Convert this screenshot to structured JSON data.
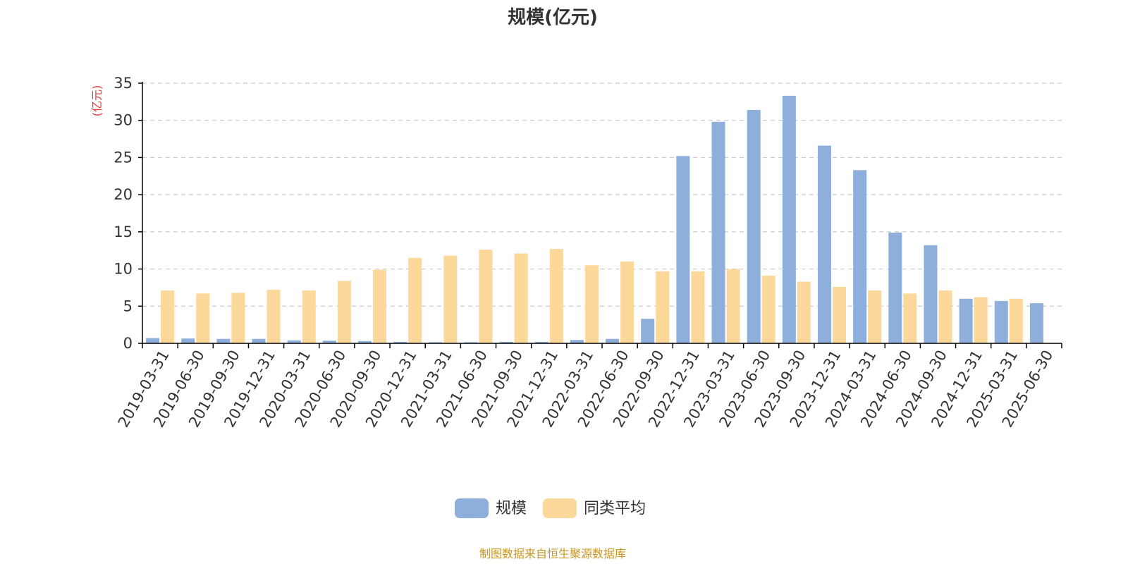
{
  "chart_data": {
    "type": "bar",
    "title": "规模(亿元)",
    "ylabel": "(亿元)",
    "ylim": [
      0,
      35
    ],
    "yticks": [
      0,
      5,
      10,
      15,
      20,
      25,
      30,
      35
    ],
    "grid": true,
    "legend_position": "bottom-center",
    "categories": [
      "2019-03-31",
      "2019-06-30",
      "2019-09-30",
      "2019-12-31",
      "2020-03-31",
      "2020-06-30",
      "2020-09-30",
      "2020-12-31",
      "2021-03-31",
      "2021-06-30",
      "2021-09-30",
      "2021-12-31",
      "2022-03-31",
      "2022-06-30",
      "2022-09-30",
      "2022-12-31",
      "2023-03-31",
      "2023-06-30",
      "2023-09-30",
      "2023-12-31",
      "2024-03-31",
      "2024-06-30",
      "2024-09-30",
      "2024-12-31",
      "2025-03-31",
      "2025-06-30"
    ],
    "series": [
      {
        "name": "规模",
        "color": "#8eaedb",
        "values": [
          0.7,
          0.65,
          0.6,
          0.6,
          0.4,
          0.35,
          0.3,
          0.2,
          0.15,
          0.15,
          0.2,
          0.2,
          0.45,
          0.6,
          3.3,
          25.2,
          29.8,
          31.4,
          33.3,
          26.6,
          23.3,
          14.9,
          13.2,
          6.0,
          5.7,
          5.4
        ]
      },
      {
        "name": "同类平均",
        "color": "#fdd89b",
        "values": [
          7.1,
          6.7,
          6.8,
          7.2,
          7.1,
          8.4,
          9.9,
          11.5,
          11.8,
          12.6,
          12.1,
          12.7,
          10.5,
          11.0,
          9.7,
          9.7,
          10.0,
          9.1,
          8.3,
          7.6,
          7.1,
          6.7,
          7.1,
          6.2,
          6.0,
          null
        ]
      }
    ],
    "source_note": "制图数据来自恒生聚源数据库",
    "colors": {
      "axis": "#000000",
      "grid": "#cccccc",
      "ylabel": "#e53935",
      "source": "#c8961e",
      "text": "#333333"
    }
  }
}
